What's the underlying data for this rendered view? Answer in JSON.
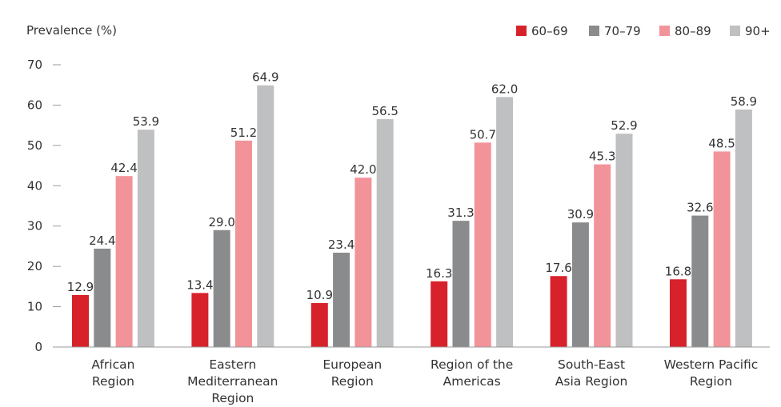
{
  "chart_data": {
    "type": "bar",
    "ylabel": "Prevalence (%)",
    "ylim": [
      0,
      70
    ],
    "yticks": [
      "0",
      "10",
      "20",
      "30",
      "40",
      "50",
      "60",
      "70"
    ],
    "grid": false,
    "legend_position": "top-right",
    "categories": [
      [
        "African",
        "Region"
      ],
      [
        "Eastern",
        "Mediterranean",
        "Region"
      ],
      [
        "European",
        "Region"
      ],
      [
        "Region of the",
        "Americas"
      ],
      [
        "South-East",
        "Asia Region"
      ],
      [
        "Western Pacific",
        "Region"
      ]
    ],
    "series": [
      {
        "name": "60–69",
        "color": "#d7222b",
        "values": [
          12.9,
          13.4,
          10.9,
          16.3,
          17.6,
          16.8
        ],
        "labels": [
          "12.9",
          "13.4",
          "10.9",
          "16.3",
          "17.6",
          "16.8"
        ]
      },
      {
        "name": "70–79",
        "color": "#8a8b8d",
        "values": [
          24.4,
          29.0,
          23.4,
          31.3,
          30.9,
          32.6
        ],
        "labels": [
          "24.4",
          "29.0",
          "23.4",
          "31.3",
          "30.9",
          "32.6"
        ]
      },
      {
        "name": "80–89",
        "color": "#f2939a",
        "values": [
          42.4,
          51.2,
          42.0,
          50.7,
          45.3,
          48.5
        ],
        "labels": [
          "42.4",
          "51.2",
          "42.0",
          "50.7",
          "45.3",
          "48.5"
        ]
      },
      {
        "name": "90+",
        "color": "#bfc0c2",
        "values": [
          53.9,
          64.9,
          56.5,
          62.0,
          52.9,
          58.9
        ],
        "labels": [
          "53.9",
          "64.9",
          "56.5",
          "62.0",
          "52.9",
          "58.9"
        ]
      }
    ]
  }
}
